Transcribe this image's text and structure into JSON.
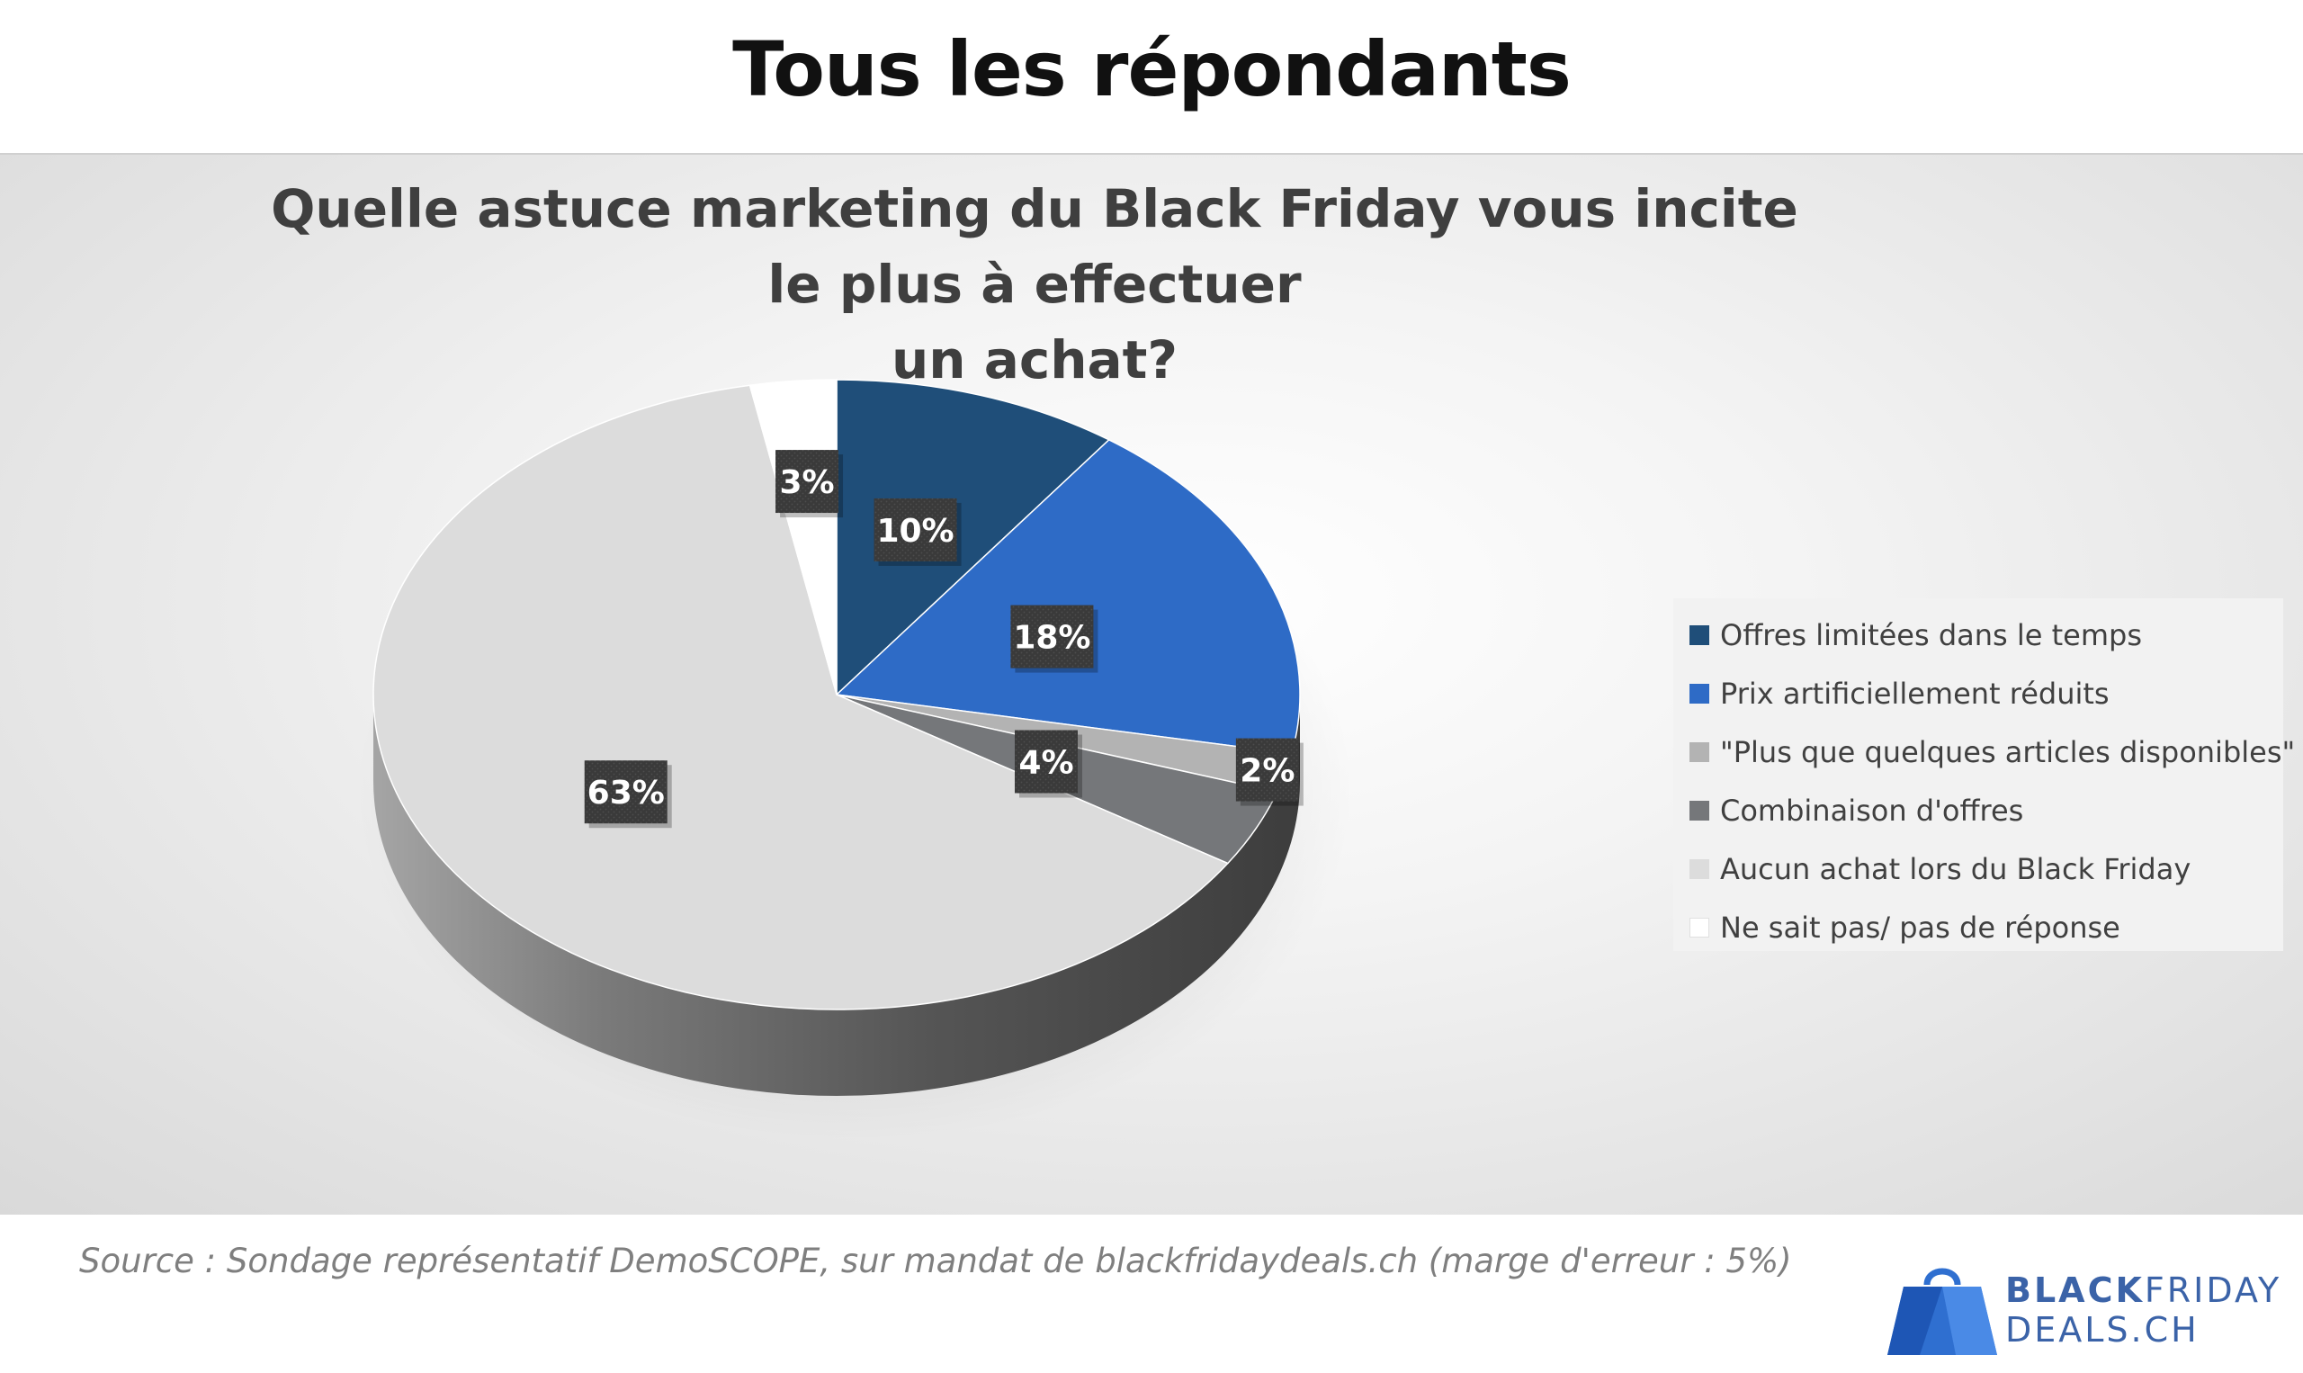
{
  "page_title": "Tous les répondants",
  "source": "Source : Sondage représentatif DemoSCOPE, sur mandat de blackfridaydeals.ch (marge d'erreur : 5%)",
  "logo": {
    "line1_bold": "BLACK",
    "line1_rest": "FRIDAY",
    "line2": "DEALS.CH"
  },
  "chart_data": {
    "type": "pie",
    "title": "Quelle astuce marketing du Black Friday vous incite le plus à effectuer un achat?",
    "title_lines": [
      "Quelle astuce marketing du Black Friday vous incite le plus à effectuer",
      "un achat?"
    ],
    "legend_position": "right",
    "categories": [
      "Offres limitées dans le temps",
      "Prix artificiellement réduits",
      "\"Plus que quelques articles disponibles\"",
      "Combinaison d'offres",
      "Aucun achat lors du Black Friday",
      "Ne sait pas/ pas de réponse"
    ],
    "values": [
      10,
      18,
      2,
      4,
      63,
      3
    ],
    "labels": [
      "10%",
      "18%",
      "2%",
      "4%",
      "63%",
      "3%"
    ],
    "colors": [
      "#1f4e79",
      "#2e6bc6",
      "#b3b3b3",
      "#75777a",
      "#dcdcdc",
      "#ffffff"
    ]
  }
}
